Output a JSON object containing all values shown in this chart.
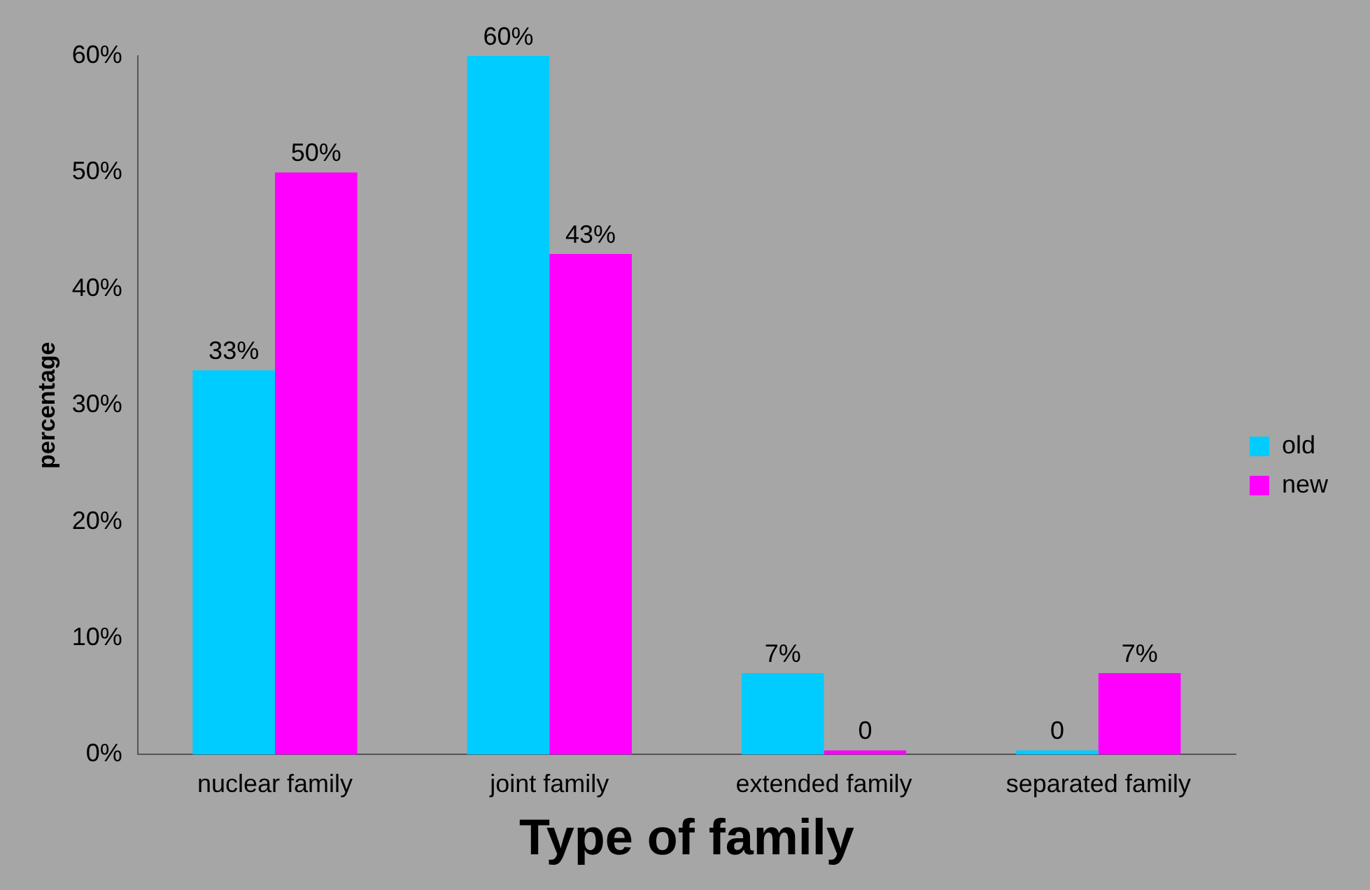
{
  "chart_data": {
    "type": "bar",
    "xlabel": "Type of family",
    "ylabel": "percentage",
    "categories": [
      "nuclear family",
      "joint family",
      "extended family",
      "separated family"
    ],
    "series": [
      {
        "name": "old",
        "color": "#00ccff",
        "values": [
          33,
          60,
          7,
          0
        ],
        "value_labels": [
          "33%",
          "60%",
          "7%",
          "0"
        ]
      },
      {
        "name": "new",
        "color": "#ff00ff",
        "values": [
          50,
          43,
          0,
          7
        ],
        "value_labels": [
          "50%",
          "43%",
          "0",
          "7%"
        ]
      }
    ],
    "ylim": [
      0,
      60
    ],
    "yticks": [
      {
        "value": 0,
        "label": "0%"
      },
      {
        "value": 10,
        "label": "10%"
      },
      {
        "value": 20,
        "label": "20%"
      },
      {
        "value": 30,
        "label": "30%"
      },
      {
        "value": 40,
        "label": "40%"
      },
      {
        "value": 50,
        "label": "50%"
      },
      {
        "value": 60,
        "label": "60%"
      }
    ],
    "grid": false,
    "legend": "right"
  }
}
